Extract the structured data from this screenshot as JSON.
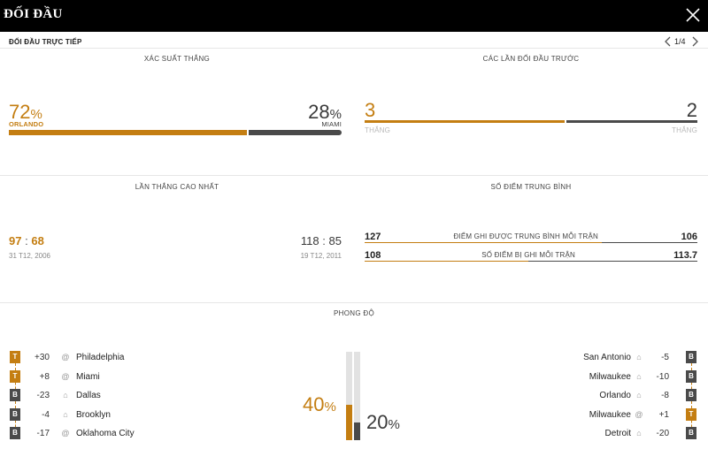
{
  "header": {
    "title": "ĐỐI ĐẦU"
  },
  "subheader": {
    "label": "ĐỐI ĐẦU TRỰC TIẾP",
    "page": "1/4"
  },
  "win_prob": {
    "title": "XÁC SUẤT THẮNG",
    "home": {
      "pct": "72",
      "team": "ORLANDO"
    },
    "away": {
      "pct": "28",
      "team": "MIAMI"
    },
    "pct_sign": "%",
    "home_share": 0.72
  },
  "previous": {
    "title": "CÁC LẦN ĐỐI ĐẦU TRƯỚC",
    "home": {
      "wins": "3",
      "label": "THẮNG"
    },
    "away": {
      "wins": "2",
      "label": "THẮNG"
    },
    "home_share": 0.6
  },
  "biggest_win": {
    "title": "LẦN THẮNG CAO NHẤT",
    "home": {
      "score_a": "97",
      "score_b": "68",
      "sep": ":",
      "date": "31 T12, 2006"
    },
    "away": {
      "score_a": "118",
      "score_b": "85",
      "sep": ":",
      "date": "19 T12, 2011"
    }
  },
  "avg_points": {
    "title": "SỐ ĐIỂM TRUNG BÌNH",
    "scored": {
      "home": "127",
      "label": "ĐIỂM GHI ĐƯỢC TRUNG BÌNH MỖI TRẬN",
      "away": "106"
    },
    "conceded": {
      "home": "108",
      "label": "SỐ ĐIỂM BỊ GHI MỖI TRẬN",
      "away": "113.7"
    }
  },
  "form": {
    "title": "PHONG ĐỘ",
    "home_pct": "40",
    "away_pct": "20",
    "pct_sign": "%",
    "home_level": 0.4,
    "away_level": 0.2,
    "home": [
      {
        "result": "T",
        "diff": "+30",
        "venue": "@",
        "venue_icon": "away-at-icon",
        "opponent": "Philadelphia"
      },
      {
        "result": "T",
        "diff": "+8",
        "venue": "@",
        "venue_icon": "away-at-icon",
        "opponent": "Miami"
      },
      {
        "result": "B",
        "diff": "-23",
        "venue": "⌂",
        "venue_icon": "home-icon",
        "opponent": "Dallas"
      },
      {
        "result": "B",
        "diff": "-4",
        "venue": "⌂",
        "venue_icon": "home-icon",
        "opponent": "Brooklyn"
      },
      {
        "result": "B",
        "diff": "-17",
        "venue": "@",
        "venue_icon": "away-at-icon",
        "opponent": "Oklahoma City"
      }
    ],
    "away": [
      {
        "result": "B",
        "diff": "-5",
        "venue": "⌂",
        "venue_icon": "home-icon",
        "opponent": "San Antonio"
      },
      {
        "result": "B",
        "diff": "-10",
        "venue": "⌂",
        "venue_icon": "home-icon",
        "opponent": "Milwaukee"
      },
      {
        "result": "B",
        "diff": "-8",
        "venue": "⌂",
        "venue_icon": "home-icon",
        "opponent": "Orlando"
      },
      {
        "result": "T",
        "diff": "+1",
        "venue": "@",
        "venue_icon": "away-at-icon",
        "opponent": "Milwaukee"
      },
      {
        "result": "B",
        "diff": "-20",
        "venue": "⌂",
        "venue_icon": "home-icon",
        "opponent": "Detroit"
      }
    ]
  },
  "colors": {
    "accent": "#c47e12",
    "dark": "#4a4a4a",
    "header_bg": "#000000"
  },
  "icons": {
    "close": "close-icon",
    "prev": "chevron-left-icon",
    "next": "chevron-right-icon"
  }
}
